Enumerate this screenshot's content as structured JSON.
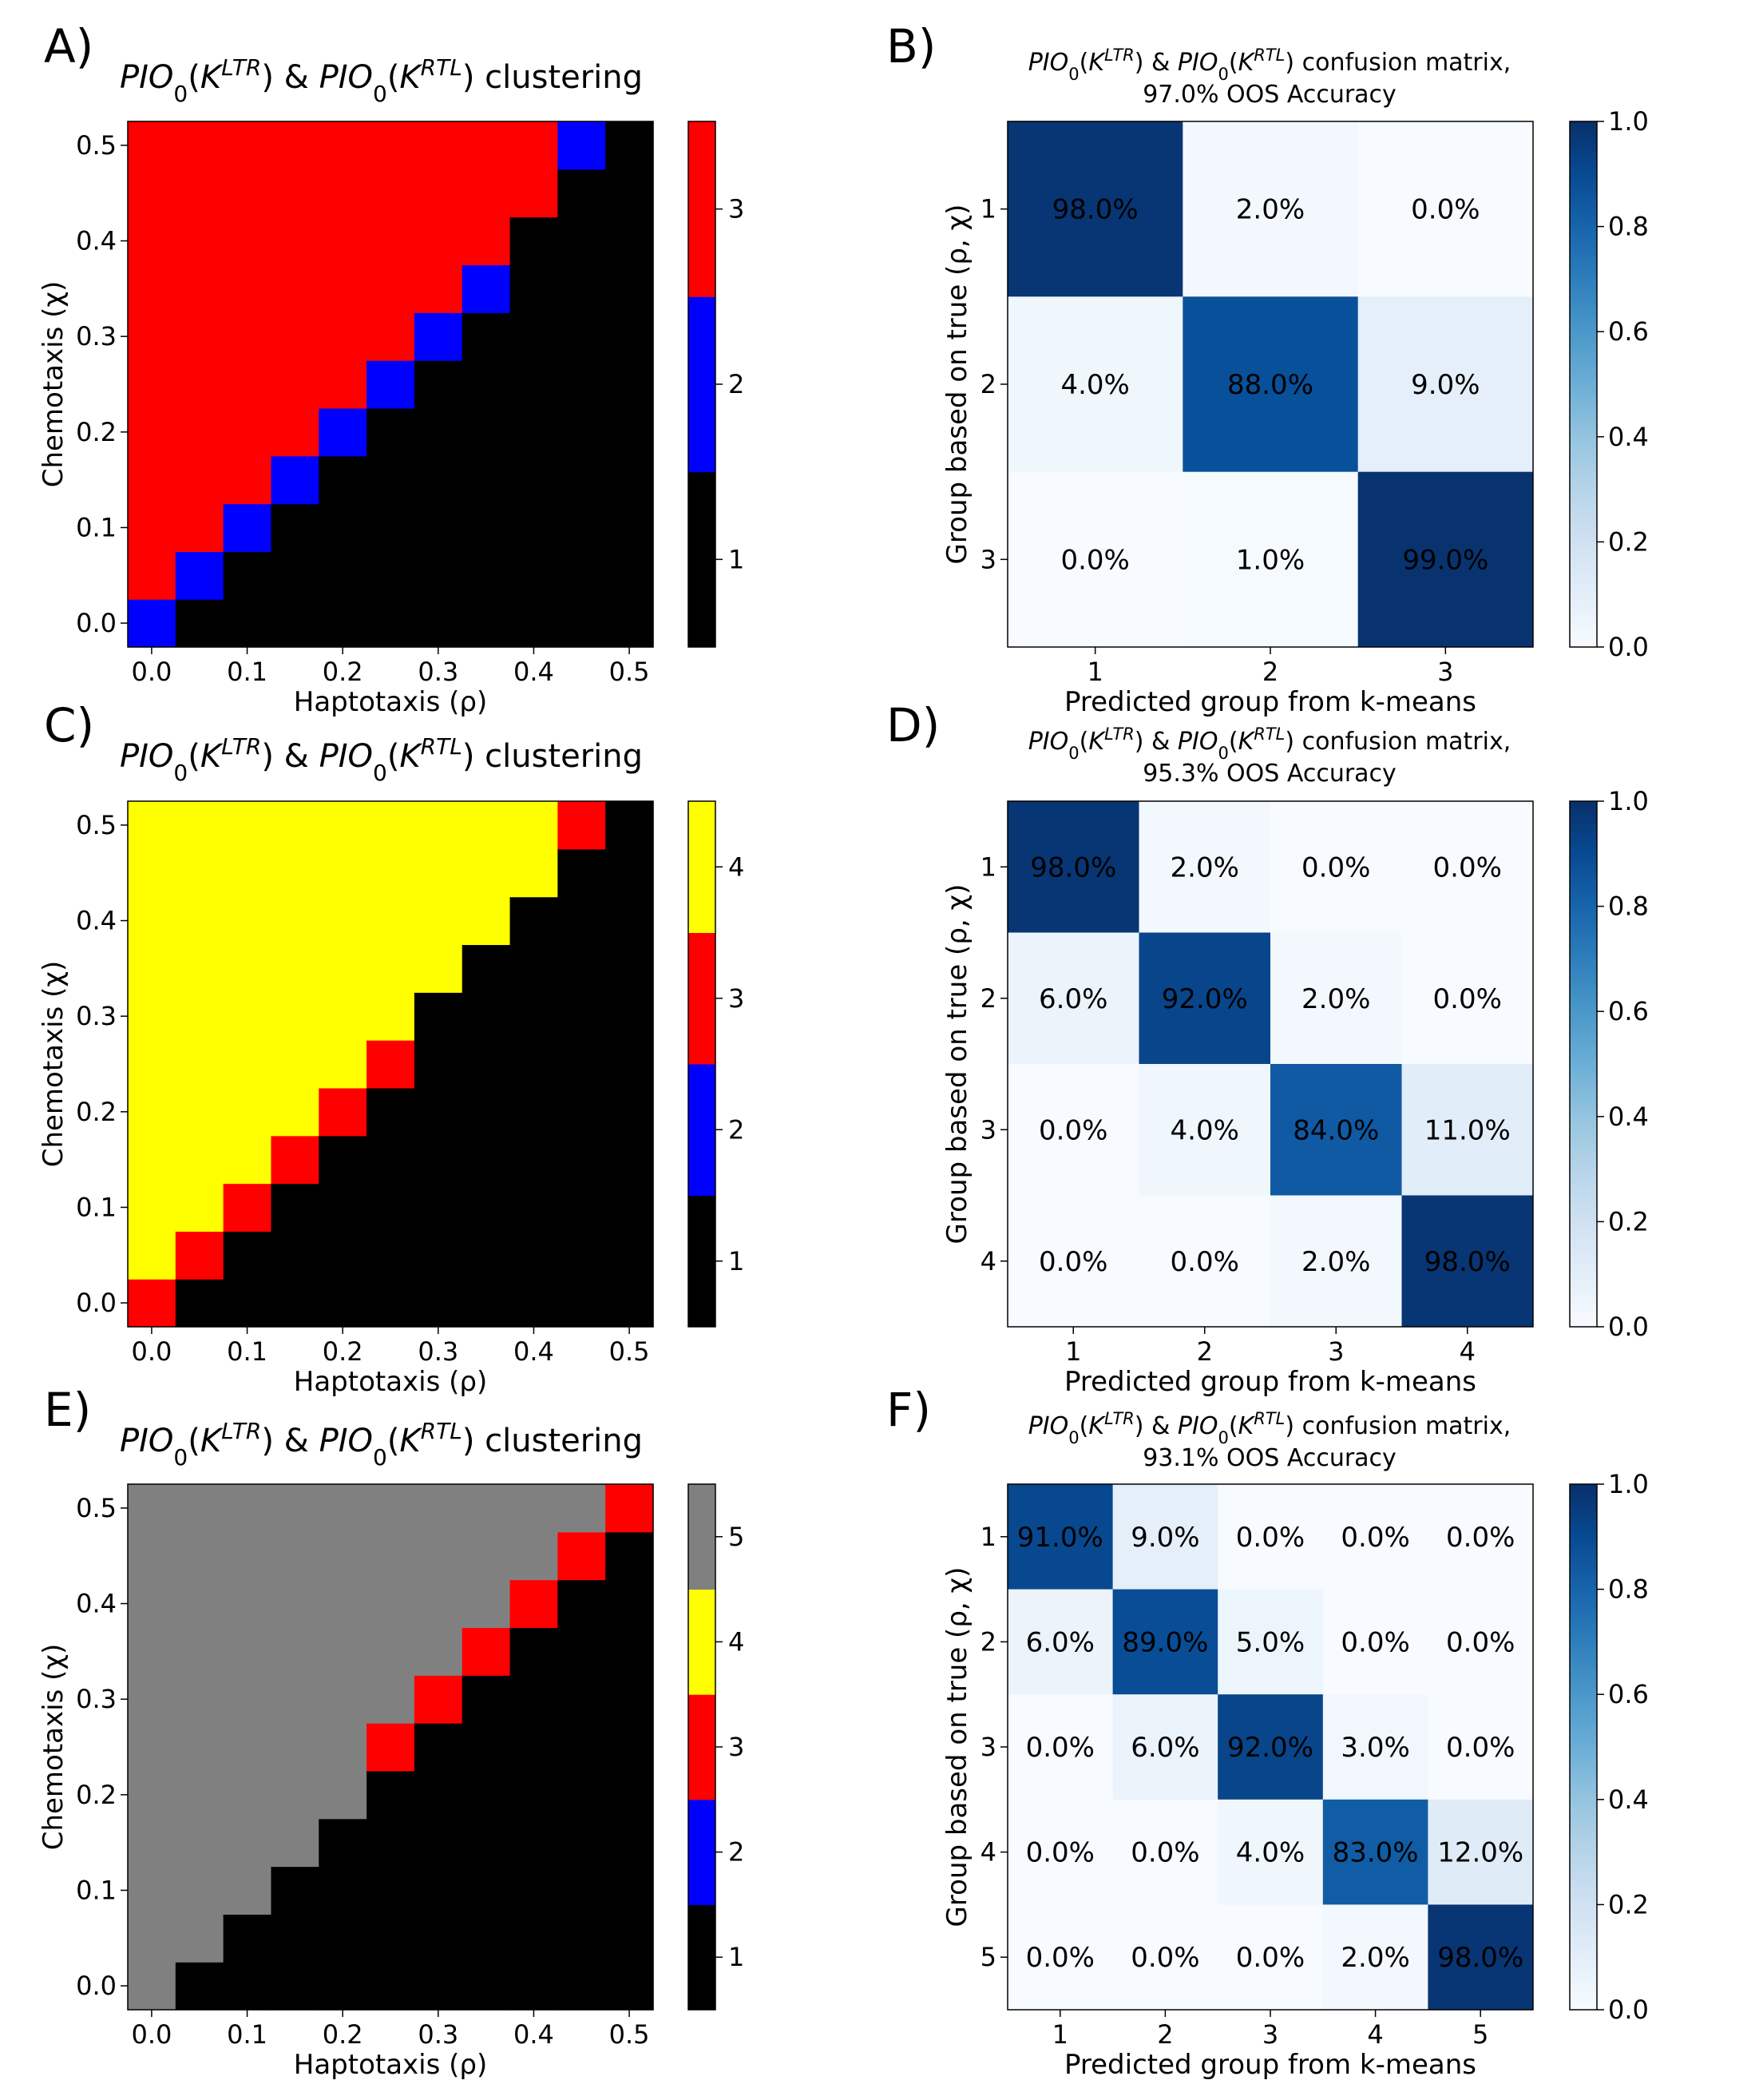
{
  "chart_data": [
    {
      "id": "A",
      "panel_label": "A)",
      "type": "heatmap",
      "title": "PIO0(K^LTR) & PIO0(K^RTL) clustering",
      "xlabel": "Haptotaxis (ρ)",
      "ylabel": "Chemotaxis (χ)",
      "x_ticks": [
        "0.0",
        "0.1",
        "0.2",
        "0.3",
        "0.4",
        "0.5"
      ],
      "y_ticks": [
        "0.0",
        "0.1",
        "0.2",
        "0.3",
        "0.4",
        "0.5"
      ],
      "xlim": [
        -0.025,
        0.525
      ],
      "ylim": [
        -0.025,
        0.525
      ],
      "grid_step": 0.05,
      "boundaries": [
        [
          0,
          1,
          8
        ],
        [
          1,
          2,
          9
        ]
      ],
      "colorbar": {
        "labels": [
          "1",
          "2",
          "3"
        ],
        "colors": [
          "#000000",
          "#0000ff",
          "#ff0000"
        ]
      }
    },
    {
      "id": "B",
      "panel_label": "B)",
      "type": "heatmap",
      "title_line1": "PIO0(K^LTR) & PIO0(K^RTL) confusion matrix,",
      "title_line2": "97.0% OOS Accuracy",
      "xlabel": "Predicted group from k-means",
      "ylabel": "Group based on true (ρ, χ)",
      "categories": [
        "1",
        "2",
        "3"
      ],
      "values": [
        [
          98.0,
          2.0,
          0.0
        ],
        [
          4.0,
          88.0,
          9.0
        ],
        [
          0.0,
          1.0,
          99.0
        ]
      ],
      "cell_labels": [
        [
          "98.0%",
          "2.0%",
          "0.0%"
        ],
        [
          "4.0%",
          "88.0%",
          "9.0%"
        ],
        [
          "0.0%",
          "1.0%",
          "99.0%"
        ]
      ],
      "colorbar_ticks": [
        "0.0",
        "0.2",
        "0.4",
        "0.6",
        "0.8",
        "1.0"
      ]
    },
    {
      "id": "C",
      "panel_label": "C)",
      "type": "heatmap",
      "title": "PIO0(K^LTR) & PIO0(K^RTL) clustering",
      "xlabel": "Haptotaxis (ρ)",
      "ylabel": "Chemotaxis (χ)",
      "x_ticks": [
        "0.0",
        "0.1",
        "0.2",
        "0.3",
        "0.4",
        "0.5"
      ],
      "y_ticks": [
        "0.0",
        "0.1",
        "0.2",
        "0.3",
        "0.4",
        "0.5"
      ],
      "xlim": [
        -0.025,
        0.525
      ],
      "ylim": [
        -0.025,
        0.525
      ],
      "grid_step": 0.05,
      "boundaries": [
        [
          0,
          1,
          6
        ],
        [
          0,
          1,
          8
        ],
        [
          1,
          2,
          9
        ]
      ],
      "colorbar": {
        "labels": [
          "1",
          "2",
          "3",
          "4"
        ],
        "colors": [
          "#000000",
          "#0000ff",
          "#ff0000",
          "#ffff00"
        ]
      }
    },
    {
      "id": "D",
      "panel_label": "D)",
      "type": "heatmap",
      "title_line1": "PIO0(K^LTR) & PIO0(K^RTL) confusion matrix,",
      "title_line2": "95.3% OOS Accuracy",
      "xlabel": "Predicted group from k-means",
      "ylabel": "Group based on true (ρ, χ)",
      "categories": [
        "1",
        "2",
        "3",
        "4"
      ],
      "values": [
        [
          98.0,
          2.0,
          0.0,
          0.0
        ],
        [
          6.0,
          92.0,
          2.0,
          0.0
        ],
        [
          0.0,
          4.0,
          84.0,
          11.0
        ],
        [
          0.0,
          0.0,
          2.0,
          98.0
        ]
      ],
      "cell_labels": [
        [
          "98.0%",
          "2.0%",
          "0.0%",
          "0.0%"
        ],
        [
          "6.0%",
          "92.0%",
          "2.0%",
          "0.0%"
        ],
        [
          "0.0%",
          "4.0%",
          "84.0%",
          "11.0%"
        ],
        [
          "0.0%",
          "0.0%",
          "2.0%",
          "98.0%"
        ]
      ],
      "colorbar_ticks": [
        "0.0",
        "0.2",
        "0.4",
        "0.6",
        "0.8",
        "1.0"
      ]
    },
    {
      "id": "E",
      "panel_label": "E)",
      "type": "heatmap",
      "title": "PIO0(K^LTR) & PIO0(K^RTL) clustering",
      "xlabel": "Haptotaxis (ρ)",
      "ylabel": "Chemotaxis (χ)",
      "x_ticks": [
        "0.0",
        "0.1",
        "0.2",
        "0.3",
        "0.4",
        "0.5"
      ],
      "y_ticks": [
        "0.0",
        "0.1",
        "0.2",
        "0.3",
        "0.4",
        "0.5"
      ],
      "xlim": [
        -0.025,
        0.525
      ],
      "ylim": [
        -0.025,
        0.525
      ],
      "grid_step": 0.05,
      "boundaries": [
        [
          0,
          0,
          2
        ],
        [
          0,
          0,
          4
        ],
        [
          0,
          1,
          5
        ],
        [
          0,
          1,
          8
        ]
      ],
      "colorbar": {
        "labels": [
          "1",
          "2",
          "3",
          "4",
          "5"
        ],
        "colors": [
          "#000000",
          "#0000ff",
          "#ff0000",
          "#ffff00",
          "#808080"
        ]
      }
    },
    {
      "id": "F",
      "panel_label": "F)",
      "type": "heatmap",
      "title_line1": "PIO0(K^LTR) & PIO0(K^RTL) confusion matrix,",
      "title_line2": "93.1% OOS Accuracy",
      "xlabel": "Predicted group from k-means",
      "ylabel": "Group based on true (ρ, χ)",
      "categories": [
        "1",
        "2",
        "3",
        "4",
        "5"
      ],
      "values": [
        [
          91.0,
          9.0,
          0.0,
          0.0,
          0.0
        ],
        [
          6.0,
          89.0,
          5.0,
          0.0,
          0.0
        ],
        [
          0.0,
          6.0,
          92.0,
          3.0,
          0.0
        ],
        [
          0.0,
          0.0,
          4.0,
          83.0,
          12.0
        ],
        [
          0.0,
          0.0,
          0.0,
          2.0,
          98.0
        ]
      ],
      "cell_labels": [
        [
          "91.0%",
          "9.0%",
          "0.0%",
          "0.0%",
          "0.0%"
        ],
        [
          "6.0%",
          "89.0%",
          "5.0%",
          "0.0%",
          "0.0%"
        ],
        [
          "0.0%",
          "6.0%",
          "92.0%",
          "3.0%",
          "0.0%"
        ],
        [
          "0.0%",
          "0.0%",
          "4.0%",
          "83.0%",
          "12.0%"
        ],
        [
          "0.0%",
          "0.0%",
          "0.0%",
          "2.0%",
          "98.0%"
        ]
      ],
      "colorbar_ticks": [
        "0.0",
        "0.2",
        "0.4",
        "0.6",
        "0.8",
        "1.0"
      ]
    }
  ]
}
